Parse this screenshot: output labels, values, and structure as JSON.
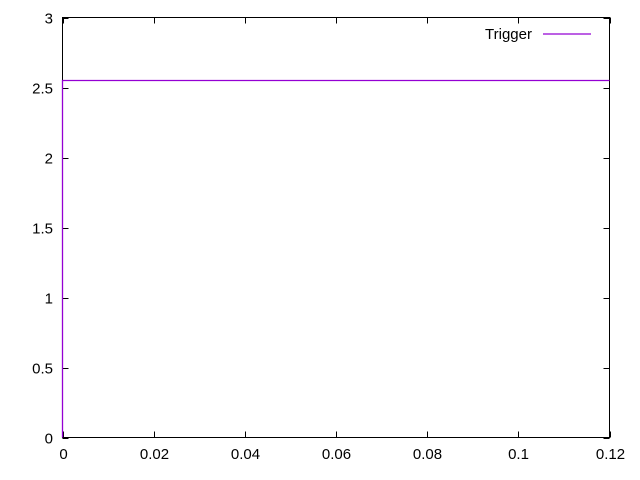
{
  "chart_data": {
    "type": "line",
    "title": "",
    "xlabel": "",
    "ylabel": "",
    "xlim": [
      0,
      0.12
    ],
    "ylim": [
      0,
      3
    ],
    "grid": false,
    "legend_position": "top-right-inside",
    "border_color": "#000000",
    "background_color": "#ffffff",
    "xticks": [
      0,
      0.02,
      0.04,
      0.06,
      0.08,
      0.1,
      0.12
    ],
    "xtick_labels": [
      "0",
      "0.02",
      "0.04",
      "0.06",
      "0.08",
      "0.1",
      "0.12"
    ],
    "yticks": [
      0,
      0.5,
      1,
      1.5,
      2,
      2.5,
      3
    ],
    "ytick_labels": [
      "0",
      "0.5",
      "1",
      "1.5",
      "2",
      "2.5",
      "3"
    ],
    "series": [
      {
        "name": "Trigger",
        "color": "#9400d3",
        "points": [
          [
            0,
            0
          ],
          [
            0,
            2.55
          ],
          [
            0.12,
            2.55
          ]
        ]
      }
    ]
  }
}
